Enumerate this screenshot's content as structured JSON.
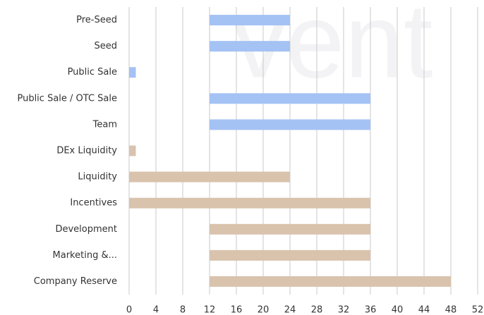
{
  "chart_data": {
    "type": "gantt",
    "watermark": "vent",
    "categories": [
      "Pre-Seed",
      "Seed",
      "Public Sale",
      "Public Sale / OTC Sale",
      "Team",
      "DEx Liquidity",
      "Liquidity",
      "Incentives",
      "Development",
      "Marketing &...",
      "Company Reserve"
    ],
    "start": [
      12,
      12,
      0,
      12,
      12,
      0,
      0,
      0,
      12,
      12,
      12
    ],
    "end": [
      24,
      24,
      1,
      36,
      36,
      1,
      24,
      36,
      36,
      36,
      48
    ],
    "colors": [
      "#a4c2f4",
      "#a4c2f4",
      "#a4c2f4",
      "#a4c2f4",
      "#a4c2f4",
      "#d9c3ad",
      "#d9c3ad",
      "#d9c3ad",
      "#d9c3ad",
      "#d9c3ad",
      "#d9c3ad"
    ],
    "xlim": [
      0,
      52
    ],
    "xticks": [
      0,
      4,
      8,
      12,
      16,
      20,
      24,
      28,
      32,
      36,
      40,
      44,
      48,
      52
    ],
    "grid": true
  }
}
